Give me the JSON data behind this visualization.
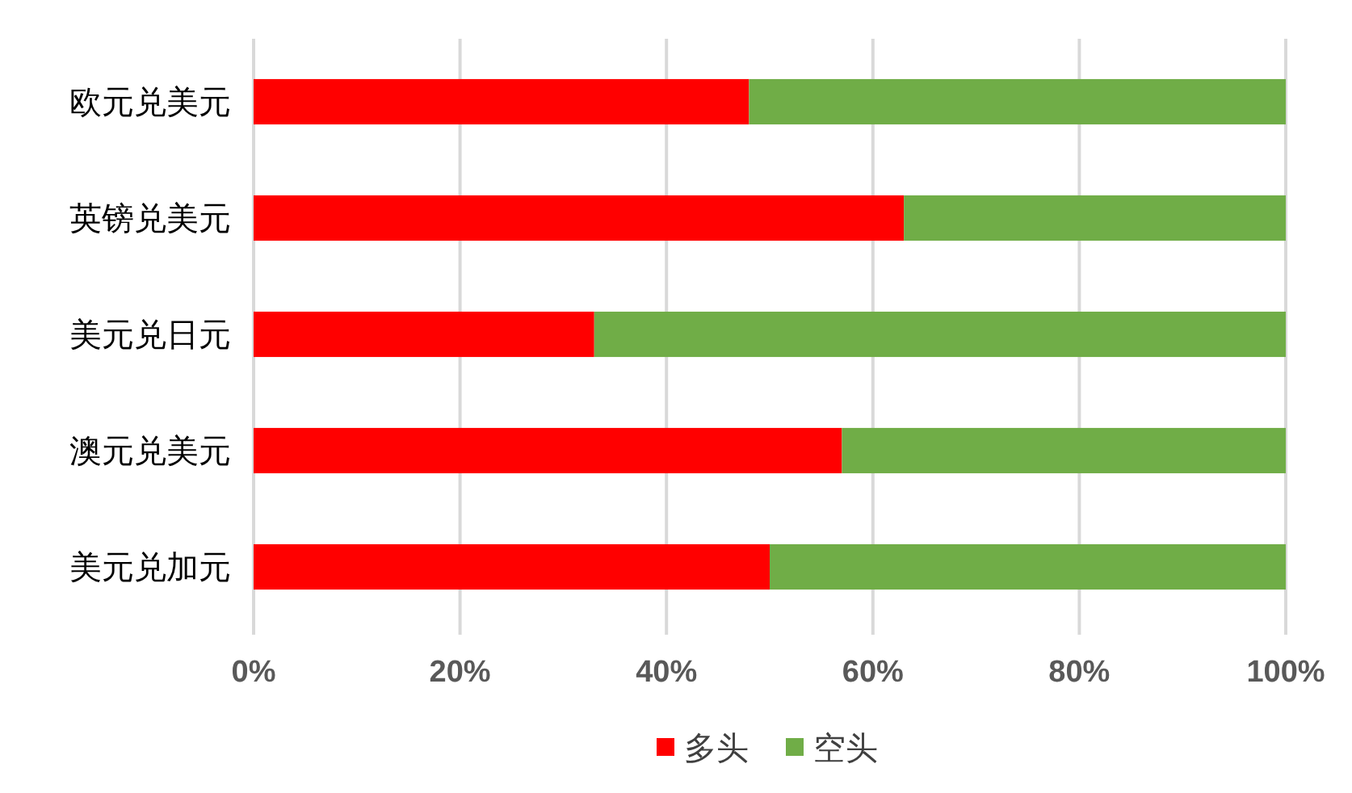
{
  "chart_data": {
    "type": "bar",
    "orientation": "horizontal",
    "stacked": true,
    "categories": [
      "欧元兑美元",
      "英镑兑美元",
      "美元兑日元",
      "澳元兑美元",
      "美元兑加元"
    ],
    "series": [
      {
        "name": "多头",
        "color": "#ff0000",
        "values": [
          48,
          63,
          33,
          57,
          50
        ]
      },
      {
        "name": "空头",
        "color": "#70ad47",
        "values": [
          52,
          37,
          67,
          43,
          50
        ]
      }
    ],
    "xlim": [
      0,
      100
    ],
    "xticks": [
      {
        "value": 0,
        "label": "0%"
      },
      {
        "value": 20,
        "label": "20%"
      },
      {
        "value": 40,
        "label": "40%"
      },
      {
        "value": 60,
        "label": "60%"
      },
      {
        "value": 80,
        "label": "80%"
      },
      {
        "value": 100,
        "label": "100%"
      }
    ],
    "grid": "x",
    "legend": "bottom"
  }
}
